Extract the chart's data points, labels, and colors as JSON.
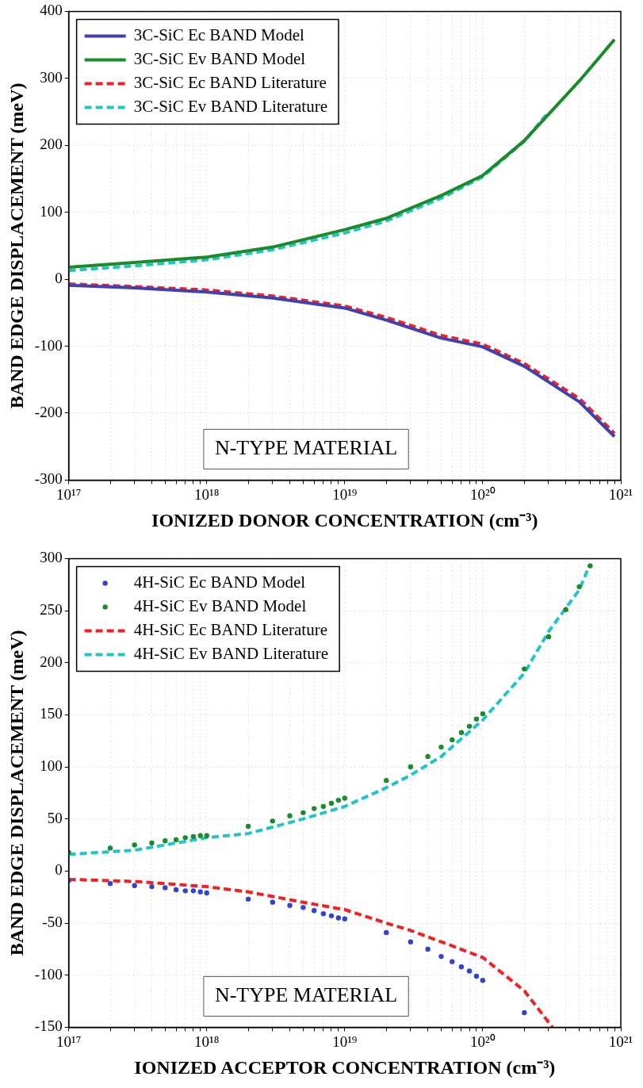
{
  "chart_data": [
    {
      "type": "line",
      "xlabel": "IONIZED DONOR CONCENTRATION (cm⁻³)",
      "ylabel": "BAND EDGE DISPLACEMENT (meV)",
      "log": "x",
      "grid": true,
      "legend": "top left",
      "annotations": [
        "N-TYPE MATERIAL"
      ],
      "xlim": [
        1e+17,
        1e+21
      ],
      "ylim": [
        -300,
        400
      ],
      "xticks": [
        {
          "value": 1e+17,
          "label": "10¹⁷"
        },
        {
          "value": 2e+17,
          "label": null
        },
        {
          "value": 3e+17,
          "label": null
        },
        {
          "value": 4e+17,
          "label": null
        },
        {
          "value": 5e+17,
          "label": null
        },
        {
          "value": 6e+17,
          "label": null
        },
        {
          "value": 7e+17,
          "label": null
        },
        {
          "value": 8e+17,
          "label": null
        },
        {
          "value": 9e+17,
          "label": null
        },
        {
          "value": 1e+18,
          "label": "10¹⁸"
        },
        {
          "value": 2e+18,
          "label": null
        },
        {
          "value": 3e+18,
          "label": null
        },
        {
          "value": 4e+18,
          "label": null
        },
        {
          "value": 5e+18,
          "label": null
        },
        {
          "value": 6e+18,
          "label": null
        },
        {
          "value": 7e+18,
          "label": null
        },
        {
          "value": 8e+18,
          "label": null
        },
        {
          "value": 9e+18,
          "label": null
        },
        {
          "value": 1e+19,
          "label": "10¹⁹"
        },
        {
          "value": 2e+19,
          "label": null
        },
        {
          "value": 3e+19,
          "label": null
        },
        {
          "value": 4e+19,
          "label": null
        },
        {
          "value": 5e+19,
          "label": null
        },
        {
          "value": 6e+19,
          "label": null
        },
        {
          "value": 7e+19,
          "label": null
        },
        {
          "value": 8e+19,
          "label": null
        },
        {
          "value": 9e+19,
          "label": null
        },
        {
          "value": 1e+20,
          "label": "10²⁰"
        },
        {
          "value": 2e+20,
          "label": null
        },
        {
          "value": 3e+20,
          "label": null
        },
        {
          "value": 4e+20,
          "label": null
        },
        {
          "value": 5e+20,
          "label": null
        },
        {
          "value": 6e+20,
          "label": null
        },
        {
          "value": 7e+20,
          "label": null
        },
        {
          "value": 8e+20,
          "label": null
        },
        {
          "value": 9e+20,
          "label": null
        },
        {
          "value": 1e+21,
          "label": "10²¹"
        }
      ],
      "yticks": [
        -300,
        -200,
        -100,
        0,
        100,
        200,
        300,
        400
      ],
      "series": [
        {
          "name": "3C-SiC Ec BAND Model",
          "color": "#4040b0",
          "marker": "none",
          "line_style": "solid",
          "x": [
            1e+17,
            3e+17,
            1e+18,
            3e+18,
            1e+19,
            2e+19,
            5e+19,
            1e+20,
            2e+20,
            5e+20,
            9e+20
          ],
          "values": [
            -9,
            -13,
            -19,
            -28,
            -43,
            -61,
            -88,
            -101,
            -130,
            -183,
            -235
          ]
        },
        {
          "name": "3C-SiC Ev BAND Model",
          "color": "#1a8a2a",
          "marker": "none",
          "line_style": "solid",
          "x": [
            1e+17,
            3e+17,
            1e+18,
            3e+18,
            1e+19,
            2e+19,
            5e+19,
            1e+20,
            2e+20,
            5e+20,
            9e+20
          ],
          "values": [
            18,
            25,
            33,
            48,
            74,
            91,
            125,
            155,
            207,
            296,
            358
          ]
        },
        {
          "name": "3C-SiC Ec BAND Literature",
          "color": "#ee2222",
          "marker": "none",
          "line_style": "dashed",
          "x": [
            1e+17,
            3e+17,
            1e+18,
            3e+18,
            1e+19,
            2e+19,
            5e+19,
            1e+20,
            2e+20,
            5e+20,
            9e+20
          ],
          "values": [
            -7,
            -11,
            -16,
            -25,
            -40,
            -57,
            -84,
            -97,
            -126,
            -178,
            -230
          ]
        },
        {
          "name": "3C-SiC Ev BAND Literature",
          "color": "#22c4c4",
          "marker": "none",
          "line_style": "dashed",
          "x": [
            1e+17,
            3e+17,
            1e+18,
            3e+18,
            1e+19,
            2e+19,
            5e+19,
            1e+20,
            2e+20,
            3e+20
          ],
          "values": [
            13,
            20,
            29,
            44,
            69,
            87,
            121,
            153,
            206,
            250
          ]
        }
      ]
    },
    {
      "type": "line",
      "xlabel": "IONIZED ACCEPTOR CONCENTRATION (cm⁻³)",
      "ylabel": "BAND EDGE DISPLACEMENT (meV)",
      "log": "x",
      "grid": true,
      "legend": "top left",
      "annotations": [
        "N-TYPE MATERIAL"
      ],
      "xlim": [
        1e+17,
        1e+21
      ],
      "ylim": [
        -150,
        300
      ],
      "xticks": [
        {
          "value": 1e+17,
          "label": "10¹⁷"
        },
        {
          "value": 2e+17,
          "label": null
        },
        {
          "value": 3e+17,
          "label": null
        },
        {
          "value": 4e+17,
          "label": null
        },
        {
          "value": 5e+17,
          "label": null
        },
        {
          "value": 6e+17,
          "label": null
        },
        {
          "value": 7e+17,
          "label": null
        },
        {
          "value": 8e+17,
          "label": null
        },
        {
          "value": 9e+17,
          "label": null
        },
        {
          "value": 1e+18,
          "label": "10¹⁸"
        },
        {
          "value": 2e+18,
          "label": null
        },
        {
          "value": 3e+18,
          "label": null
        },
        {
          "value": 4e+18,
          "label": null
        },
        {
          "value": 5e+18,
          "label": null
        },
        {
          "value": 6e+18,
          "label": null
        },
        {
          "value": 7e+18,
          "label": null
        },
        {
          "value": 8e+18,
          "label": null
        },
        {
          "value": 9e+18,
          "label": null
        },
        {
          "value": 1e+19,
          "label": "10¹⁹"
        },
        {
          "value": 2e+19,
          "label": null
        },
        {
          "value": 3e+19,
          "label": null
        },
        {
          "value": 4e+19,
          "label": null
        },
        {
          "value": 5e+19,
          "label": null
        },
        {
          "value": 6e+19,
          "label": null
        },
        {
          "value": 7e+19,
          "label": null
        },
        {
          "value": 8e+19,
          "label": null
        },
        {
          "value": 9e+19,
          "label": null
        },
        {
          "value": 1e+20,
          "label": "10²⁰"
        },
        {
          "value": 2e+20,
          "label": null
        },
        {
          "value": 3e+20,
          "label": null
        },
        {
          "value": 4e+20,
          "label": null
        },
        {
          "value": 5e+20,
          "label": null
        },
        {
          "value": 6e+20,
          "label": null
        },
        {
          "value": 7e+20,
          "label": null
        },
        {
          "value": 8e+20,
          "label": null
        },
        {
          "value": 9e+20,
          "label": null
        },
        {
          "value": 1e+21,
          "label": "10²¹"
        }
      ],
      "yticks": [
        -150,
        -100,
        -50,
        0,
        50,
        100,
        150,
        200,
        250,
        300
      ],
      "series": [
        {
          "name": "4H-SiC Ec BAND Model",
          "type": "scatter",
          "color": "#3344cc",
          "marker": "circle",
          "x": [
            1e+17,
            2e+17,
            3e+17,
            4e+17,
            5e+17,
            6e+17,
            7e+17,
            8e+17,
            9e+17,
            1e+18,
            2e+18,
            3e+18,
            4e+18,
            5e+18,
            6e+18,
            7e+18,
            8e+18,
            9e+18,
            1e+19,
            2e+19,
            3e+19,
            4e+19,
            5e+19,
            6e+19,
            7e+19,
            8e+19,
            9e+19,
            1e+20,
            2e+20
          ],
          "values": [
            -9,
            -12,
            -14,
            -15,
            -16,
            -18,
            -19,
            -19,
            -20,
            -21,
            -27,
            -30,
            -33,
            -35,
            -38,
            -41,
            -43,
            -45,
            -46,
            -59,
            -68,
            -75,
            -82,
            -87,
            -92,
            -96,
            -101,
            -105,
            -136
          ]
        },
        {
          "name": "4H-SiC Ev BAND Model",
          "type": "scatter",
          "color": "#1a8a2a",
          "marker": "circle",
          "x": [
            1e+17,
            2e+17,
            3e+17,
            4e+17,
            5e+17,
            6e+17,
            7e+17,
            8e+17,
            9e+17,
            1e+18,
            2e+18,
            3e+18,
            4e+18,
            5e+18,
            6e+18,
            7e+18,
            8e+18,
            9e+18,
            1e+19,
            2e+19,
            3e+19,
            4e+19,
            5e+19,
            6e+19,
            7e+19,
            8e+19,
            9e+19,
            1e+20,
            2e+20,
            3e+20,
            4e+20,
            5e+20,
            6e+20
          ],
          "values": [
            18,
            22,
            25,
            27,
            29,
            30,
            32,
            33,
            34,
            34,
            43,
            48,
            53,
            56,
            60,
            62,
            65,
            68,
            70,
            87,
            100,
            110,
            119,
            126,
            133,
            139,
            146,
            151,
            194,
            225,
            251,
            273,
            293
          ]
        },
        {
          "name": "4H-SiC Ec BAND Literature",
          "color": "#ee2222",
          "marker": "none",
          "line_style": "dashed",
          "x": [
            1e+17,
            3e+17,
            1e+18,
            2e+18,
            5e+18,
            1e+19,
            2e+19,
            3e+19,
            5e+19,
            1e+20,
            2e+20,
            3.2e+20
          ],
          "values": [
            -8,
            -10,
            -15,
            -20,
            -30,
            -37,
            -50,
            -57,
            -68,
            -83,
            -115,
            -150
          ]
        },
        {
          "name": "4H-SiC Ev BAND Literature",
          "color": "#22c4c4",
          "marker": "none",
          "line_style": "dashed",
          "x": [
            1e+17,
            3e+17,
            1e+18,
            2e+18,
            5e+18,
            1e+19,
            2e+19,
            3e+19,
            5e+19,
            1e+20,
            2e+20,
            3e+20,
            5e+20,
            6e+20
          ],
          "values": [
            16,
            20,
            32,
            36,
            50,
            62,
            80,
            92,
            110,
            145,
            190,
            230,
            270,
            295
          ]
        }
      ]
    }
  ]
}
